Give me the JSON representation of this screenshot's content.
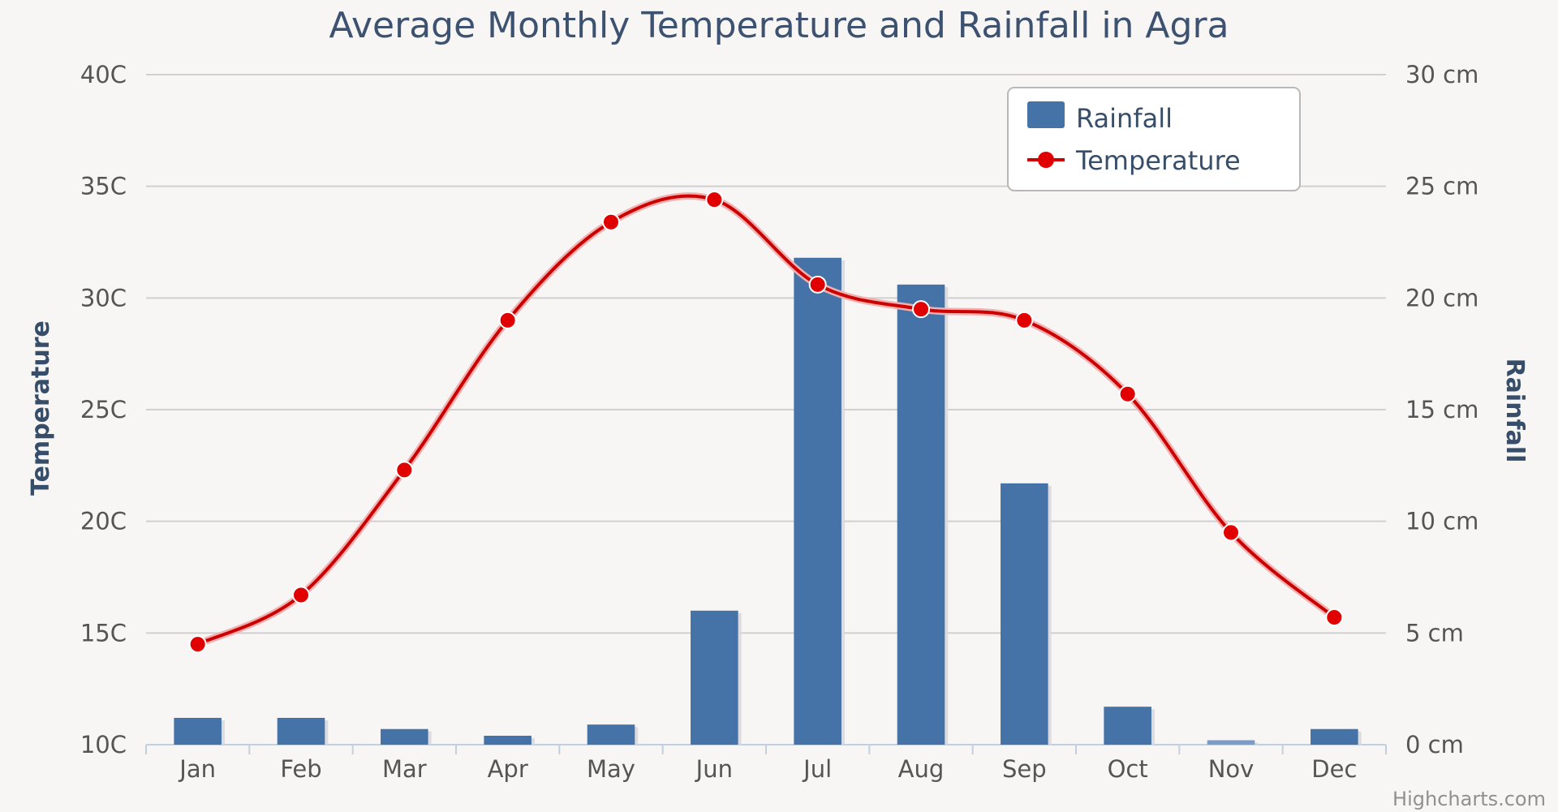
{
  "chart_data": {
    "type": "bar+line",
    "title": "Average Monthly Temperature and Rainfall in Agra",
    "categories": [
      "Jan",
      "Feb",
      "Mar",
      "Apr",
      "May",
      "Jun",
      "Jul",
      "Aug",
      "Sep",
      "Oct",
      "Nov",
      "Dec"
    ],
    "series": [
      {
        "name": "Rainfall",
        "type": "bar",
        "axis": "right",
        "unit": "cm",
        "color": "#4572a7",
        "values": [
          1.2,
          1.2,
          0.7,
          0.4,
          0.9,
          6.0,
          21.8,
          20.6,
          11.7,
          1.7,
          0.2,
          0.7
        ]
      },
      {
        "name": "Temperature",
        "type": "spline",
        "axis": "left",
        "unit": "C",
        "color": "#cc0000",
        "marker_color": "#e00000",
        "values": [
          14.5,
          16.7,
          22.3,
          29.0,
          33.4,
          34.4,
          30.6,
          29.5,
          29.0,
          25.7,
          19.5,
          15.7
        ]
      }
    ],
    "y_left": {
      "label": "Temperature",
      "range": [
        10,
        40
      ],
      "ticks": [
        "10C",
        "15C",
        "20C",
        "25C",
        "30C",
        "35C",
        "40C"
      ]
    },
    "y_right": {
      "label": "Rainfall",
      "range": [
        0,
        30
      ],
      "ticks": [
        "0 cm",
        "5 cm",
        "10 cm",
        "15 cm",
        "20 cm",
        "25 cm",
        "30 cm"
      ]
    },
    "legend": {
      "position": "top-right",
      "items": [
        "Rainfall",
        "Temperature"
      ]
    },
    "grid": true,
    "credits": "Highcharts.com"
  }
}
